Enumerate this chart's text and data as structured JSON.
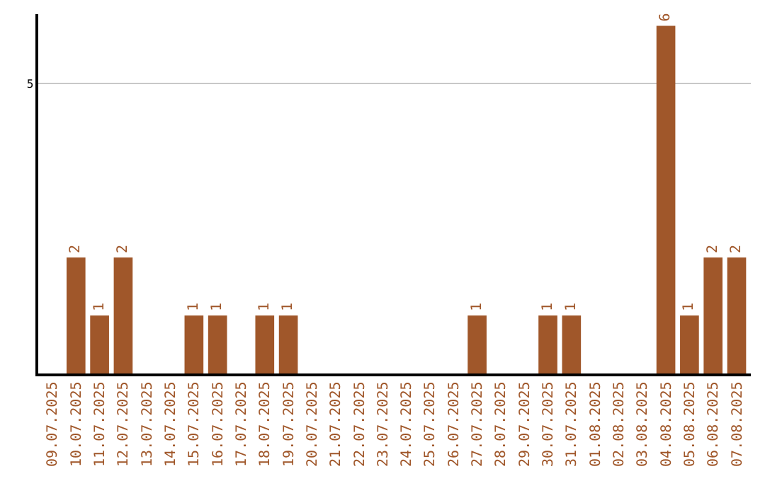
{
  "chart_data": {
    "type": "bar",
    "categories": [
      "09.07.2025",
      "10.07.2025",
      "11.07.2025",
      "12.07.2025",
      "13.07.2025",
      "14.07.2025",
      "15.07.2025",
      "16.07.2025",
      "17.07.2025",
      "18.07.2025",
      "19.07.2025",
      "20.07.2025",
      "21.07.2025",
      "22.07.2025",
      "23.07.2025",
      "24.07.2025",
      "25.07.2025",
      "26.07.2025",
      "27.07.2025",
      "28.07.2025",
      "29.07.2025",
      "30.07.2025",
      "31.07.2025",
      "01.08.2025",
      "02.08.2025",
      "03.08.2025",
      "04.08.2025",
      "05.08.2025",
      "06.08.2025",
      "07.08.2025"
    ],
    "values": [
      0,
      2,
      1,
      2,
      0,
      0,
      1,
      1,
      0,
      1,
      1,
      0,
      0,
      0,
      0,
      0,
      0,
      0,
      1,
      0,
      0,
      1,
      1,
      0,
      0,
      0,
      6,
      1,
      2,
      2
    ],
    "value_labels": [
      null,
      "2",
      "1",
      "2",
      null,
      null,
      "1",
      "1",
      null,
      "1",
      "1",
      null,
      null,
      null,
      null,
      null,
      null,
      null,
      "1",
      null,
      null,
      "1",
      "1",
      null,
      null,
      null,
      "6",
      "1",
      "2",
      "2"
    ],
    "color": "#a0572a",
    "ylim": [
      0,
      6.2
    ],
    "yticks": [
      5
    ],
    "grid": "y"
  }
}
